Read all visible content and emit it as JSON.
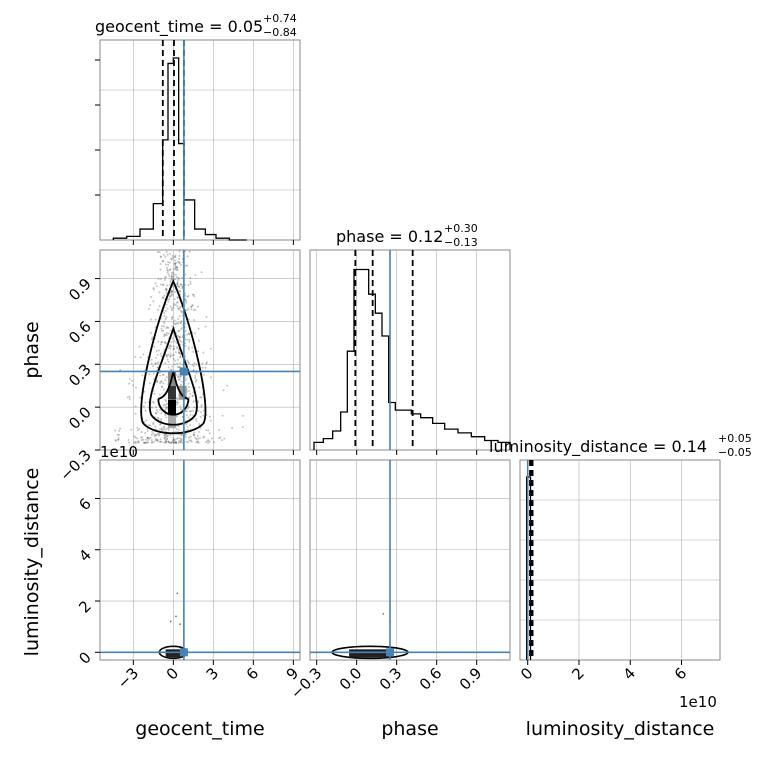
{
  "chart_data": [
    {
      "type": "histogram",
      "panel": "geocent_time marginal",
      "title_param": "geocent_time",
      "title_value": "0.05",
      "title_upper": "+0.74",
      "title_lower": "−0.84",
      "xlim": [
        -5.5,
        9.5
      ],
      "bin_edges": [
        -4.5,
        -3.5,
        -2.5,
        -1.5,
        -0.8,
        -0.4,
        0,
        0.4,
        0.8,
        1.6,
        2.4,
        3.2,
        4.2,
        5.5
      ],
      "counts": [
        0.01,
        0.02,
        0.06,
        0.2,
        0.55,
        0.97,
        1.0,
        0.53,
        0.22,
        0.06,
        0.03,
        0.01,
        0.0
      ],
      "quantiles": [
        -0.79,
        0.05,
        0.79
      ],
      "truth": 0.79
    },
    {
      "type": "histogram",
      "panel": "phase marginal",
      "title_param": "phase",
      "title_value": "0.12",
      "title_upper": "+0.30",
      "title_lower": "−0.13",
      "xlim": [
        -0.35,
        1.15
      ],
      "bin_edges": [
        -0.32,
        -0.25,
        -0.18,
        -0.12,
        -0.07,
        -0.02,
        0.03,
        0.09,
        0.14,
        0.19,
        0.24,
        0.29,
        0.35,
        0.41,
        0.48,
        0.57,
        0.66,
        0.76,
        0.86,
        0.96,
        1.06,
        1.15
      ],
      "counts": [
        0.04,
        0.06,
        0.1,
        0.2,
        0.52,
        0.95,
        0.95,
        0.82,
        0.72,
        0.6,
        0.25,
        0.21,
        0.21,
        0.19,
        0.17,
        0.14,
        0.11,
        0.09,
        0.07,
        0.05,
        0.04
      ],
      "quantiles": [
        -0.01,
        0.12,
        0.42
      ],
      "truth": 0.25
    },
    {
      "type": "histogram",
      "panel": "luminosity_distance marginal",
      "title_param": "luminosity_distance",
      "title_value": "0.14",
      "title_upper": "+0.05",
      "title_lower": "−0.05",
      "xlim": [
        -0.3,
        7.5
      ],
      "bin_edges": [
        -0.04,
        0.11
      ],
      "counts": [
        1.0
      ],
      "quantiles": [
        0.09,
        0.14,
        0.19
      ],
      "truth": 0.0,
      "offset_text": "1e10"
    },
    {
      "type": "scatter",
      "panel": "phase vs geocent_time",
      "xlim": [
        -5.5,
        9.5
      ],
      "ylim": [
        -0.3,
        1.1
      ],
      "truth": [
        0.79,
        0.25
      ],
      "density_center": [
        0.0,
        0.1
      ]
    },
    {
      "type": "scatter",
      "panel": "luminosity_distance vs geocent_time",
      "xlim": [
        -5.5,
        9.5
      ],
      "ylim": [
        -0.3,
        7.5
      ],
      "truth": [
        0.79,
        0.0
      ]
    },
    {
      "type": "scatter",
      "panel": "luminosity_distance vs phase",
      "xlim": [
        -0.35,
        1.15
      ],
      "ylim": [
        -0.3,
        7.5
      ],
      "truth": [
        0.25,
        0.0
      ]
    }
  ],
  "labels": {
    "x1": "geocent_time",
    "x2": "phase",
    "x3": "luminosity_distance",
    "y_phase": "phase",
    "y_lum": "luminosity_distance",
    "offset_y": "1e10",
    "offset_x": "1e10"
  },
  "ticks": {
    "geocent": [
      "−3",
      "0",
      "3",
      "6",
      "9"
    ],
    "phase": [
      "−0.3",
      "0.0",
      "0.3",
      "0.6",
      "0.9"
    ],
    "lum": [
      "0",
      "2",
      "4",
      "6"
    ]
  },
  "colors": {
    "truth": "#4682b4",
    "hist": "#000000",
    "grid": "#b0b0b0"
  }
}
